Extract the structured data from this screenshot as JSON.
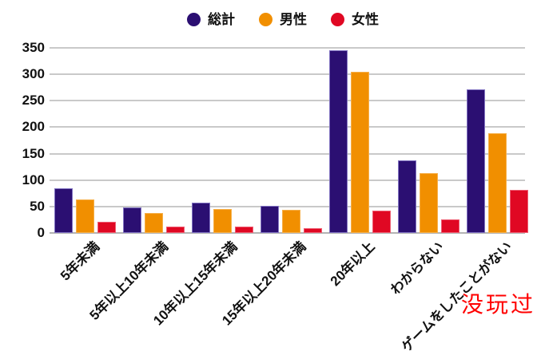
{
  "chart_data": {
    "type": "bar",
    "title": "",
    "categories": [
      "5年未満",
      "5年以上10年未満",
      "10年以上15年未満",
      "15年以上20年未満",
      "20年以上",
      "わからない",
      "ゲームをしたことがない"
    ],
    "series": [
      {
        "name": "総計",
        "color": "#2b0f72",
        "border_color": "#8274c2",
        "values": [
          84,
          49,
          57,
          52,
          346,
          138,
          271
        ]
      },
      {
        "name": "男性",
        "color": "#f18f00",
        "border_color": "#f6b04a",
        "values": [
          63,
          37,
          45,
          43,
          304,
          113,
          189
        ]
      },
      {
        "name": "女性",
        "color": "#e00823",
        "border_color": "#ee5e72",
        "values": [
          21,
          12,
          12,
          9,
          42,
          25,
          82
        ]
      }
    ],
    "xlabel": "",
    "ylabel": "",
    "ylim": [
      0,
      350
    ],
    "yticks": [
      0,
      50,
      100,
      150,
      200,
      250,
      300,
      350
    ],
    "grid": "horizontal",
    "legend_position": "top",
    "annotation": {
      "text": "没玩过",
      "color": "#ff0000"
    }
  }
}
